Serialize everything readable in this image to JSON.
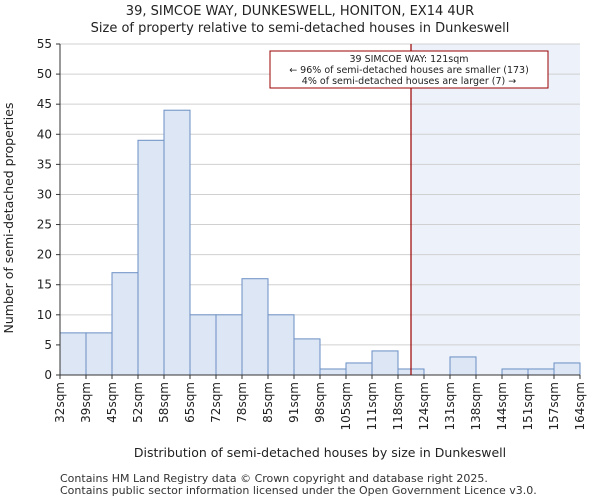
{
  "header": {
    "line1": "39, SIMCOE WAY, DUNKESWELL, HONITON, EX14 4UR",
    "line2": "Size of property relative to semi-detached houses in Dunkeswell"
  },
  "footer": {
    "line1": "Contains HM Land Registry data © Crown copyright and database right 2025.",
    "line2": "Contains public sector information licensed under the Open Government Licence v3.0."
  },
  "colors": {
    "bar_fill": "#dce6f4",
    "bar_stroke": "#6a8fc4",
    "highlight_fill": "#edf2fa",
    "marker_line": "#990000",
    "grid": "#d0d0d0"
  },
  "chart_data": {
    "type": "bar",
    "xlabel": "Distribution of semi-detached houses by size in Dunkeswell",
    "ylabel": "Number of semi-detached properties",
    "ylim": [
      0,
      55
    ],
    "yticks": [
      0,
      5,
      10,
      15,
      20,
      25,
      30,
      35,
      40,
      45,
      50,
      55
    ],
    "grid": "horizontal",
    "bin_edges": [
      "32sqm",
      "39sqm",
      "45sqm",
      "52sqm",
      "58sqm",
      "65sqm",
      "72sqm",
      "78sqm",
      "85sqm",
      "91sqm",
      "98sqm",
      "105sqm",
      "111sqm",
      "118sqm",
      "124sqm",
      "131sqm",
      "138sqm",
      "144sqm",
      "151sqm",
      "157sqm",
      "164sqm"
    ],
    "values": [
      7,
      7,
      17,
      39,
      44,
      10,
      10,
      16,
      10,
      6,
      1,
      2,
      4,
      1,
      0,
      3,
      0,
      1,
      1,
      2
    ],
    "marker": {
      "value_sqm": 121,
      "annotation": [
        "39 SIMCOE WAY: 121sqm",
        "← 96% of semi-detached houses are smaller (173)",
        "4% of semi-detached houses are larger (7) →"
      ]
    }
  }
}
